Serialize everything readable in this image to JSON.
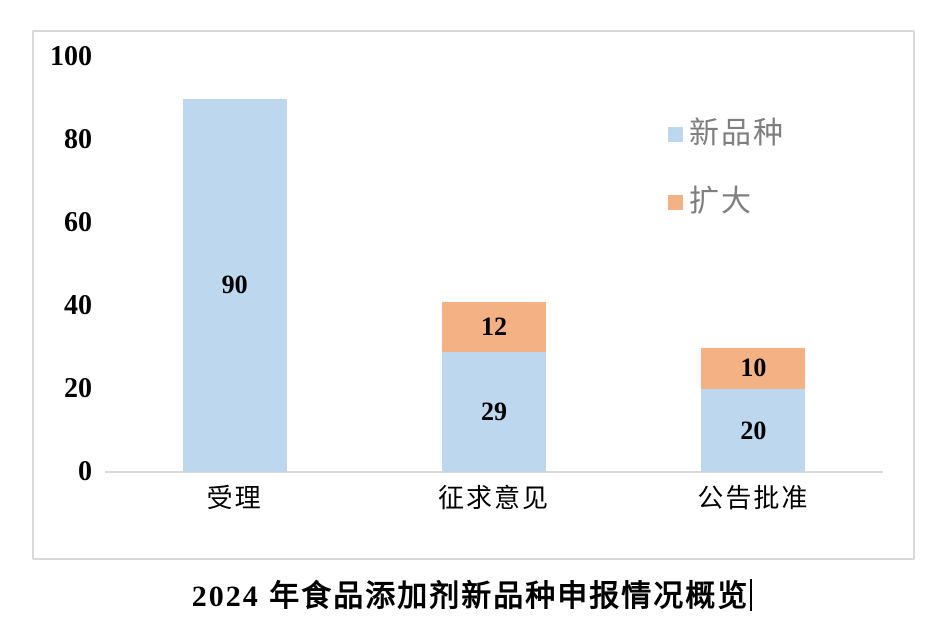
{
  "chart_data": {
    "type": "bar",
    "stacked": true,
    "title": "2024 年食品添加剂新品种申报情况概览",
    "categories": [
      "受理",
      "征求意见",
      "公告批准"
    ],
    "series": [
      {
        "name": "新品种",
        "color": "#BDD7EE",
        "values": [
          90,
          29,
          20
        ]
      },
      {
        "name": "扩大",
        "color": "#F4B183",
        "values": [
          0,
          12,
          10
        ]
      }
    ],
    "ylim": [
      0,
      100
    ],
    "yticks": [
      0,
      20,
      40,
      60,
      80,
      100
    ],
    "grid": false,
    "legend_position": "upper-right",
    "value_labels": true
  },
  "colors": {
    "bar_blue": "#BDD7EE",
    "bar_orange": "#F4B183",
    "frame_border": "#D9D9D9",
    "axis_line": "#D9D9D9",
    "legend_text": "#7F7F7F",
    "label_text": "#000000",
    "background": "#FFFFFF"
  }
}
